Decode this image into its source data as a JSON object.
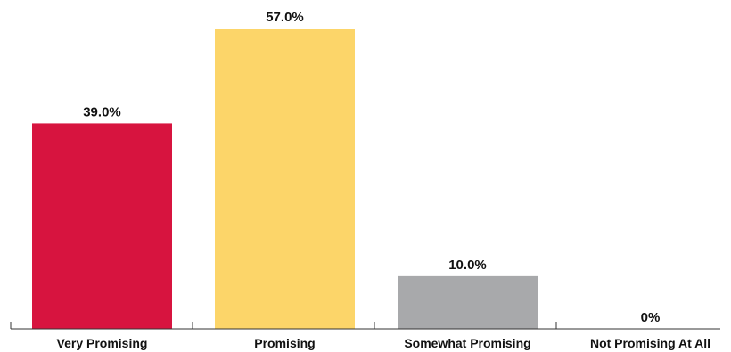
{
  "chart_data": {
    "type": "bar",
    "categories": [
      "Very Promising",
      "Promising",
      "Somewhat Promising",
      "Not Promising At All"
    ],
    "values": [
      39.0,
      57.0,
      10.0,
      0
    ],
    "value_labels": [
      "39.0%",
      "57.0%",
      "10.0%",
      "0%"
    ],
    "colors": [
      "#d7143f",
      "#fcd569",
      "#a8a9ab",
      "#ffffff"
    ],
    "axis_color": "#333333",
    "title": "",
    "xlabel": "",
    "ylabel": "",
    "ylim": [
      0,
      57.0
    ],
    "grid": false,
    "legend": "none"
  }
}
